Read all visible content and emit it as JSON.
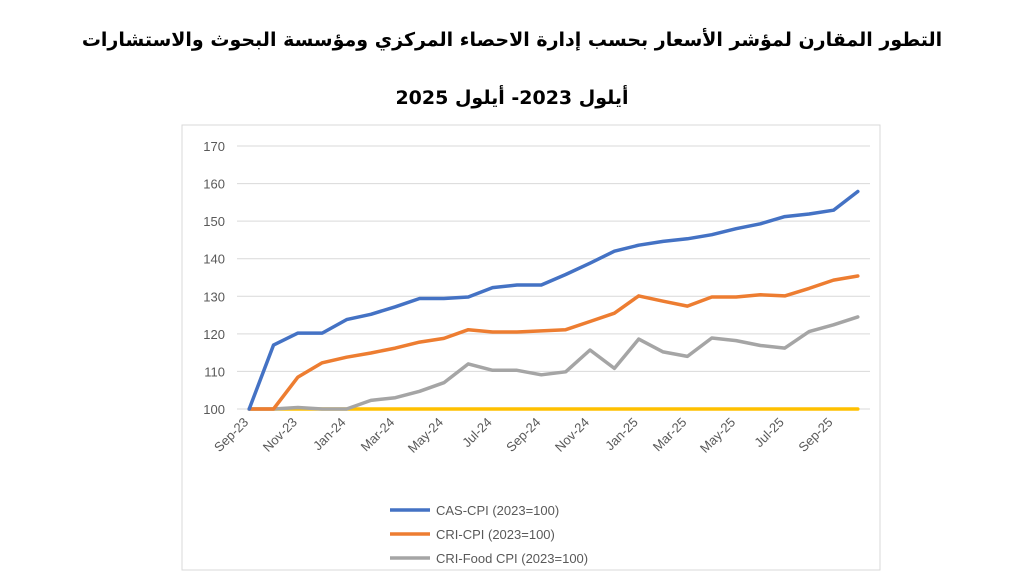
{
  "chart_data": {
    "type": "line",
    "title": "التطور المقارن لمؤشر الأسعار بحسب إدارة الاحصاء المركزي ومؤسسة البحوث والاستشارات",
    "subtitle": "أيلول 2023- أيلول 2025",
    "categories": [
      "Sep-23",
      null,
      "Nov-23",
      null,
      "Jan-24",
      null,
      "Mar-24",
      null,
      "May-24",
      null,
      "Jul-24",
      null,
      "Sep-24",
      null,
      "Nov-24",
      null,
      "Jan-25",
      null,
      "Mar-25",
      null,
      "May-25",
      null,
      "Jul-25",
      null,
      "Sep-25",
      null
    ],
    "series": [
      {
        "name": "CAS-CPI (2023=100)",
        "color": "#4472c4",
        "values": [
          100,
          117,
          120.2,
          120.2,
          123.8,
          125.2,
          127.2,
          129.4,
          129.4,
          129.8,
          132.3,
          133,
          133,
          135.8,
          138.8,
          142,
          143.6,
          144.6,
          145.3,
          146.4,
          148,
          149.3,
          151.2,
          151.9,
          152.9,
          157.9
        ]
      },
      {
        "name": "CRI-CPI (2023=100)",
        "color": "#ed7d31",
        "values": [
          100,
          100,
          108.5,
          112.3,
          113.8,
          114.9,
          116.2,
          117.8,
          118.8,
          121.1,
          120.5,
          120.5,
          120.8,
          121.1,
          123.3,
          125.5,
          130.1,
          128.7,
          127.4,
          129.8,
          129.8,
          130.4,
          130.1,
          132.1,
          134.3,
          135.4
        ]
      },
      {
        "name": "CRI-Food CPI (2023=100)",
        "color": "#a5a5a5",
        "values": [
          100,
          100,
          100.4,
          100,
          100,
          102.3,
          103,
          104.7,
          107,
          112,
          110.3,
          110.3,
          109.1,
          109.9,
          115.7,
          110.8,
          118.6,
          115.2,
          114,
          118.9,
          118.2,
          116.9,
          116.2,
          120.6,
          122.4,
          124.5
        ]
      },
      {
        "color": "#ffc000",
        "values": [
          100,
          100,
          100,
          100,
          100,
          100,
          100,
          100,
          100,
          100,
          100,
          100,
          100,
          100,
          100,
          100,
          100,
          100,
          100,
          100,
          100,
          100,
          100,
          100,
          100,
          100
        ]
      }
    ],
    "ylim": [
      100,
      170
    ],
    "yticks": [
      100,
      110,
      120,
      130,
      140,
      150,
      160,
      170
    ],
    "grid": true
  }
}
